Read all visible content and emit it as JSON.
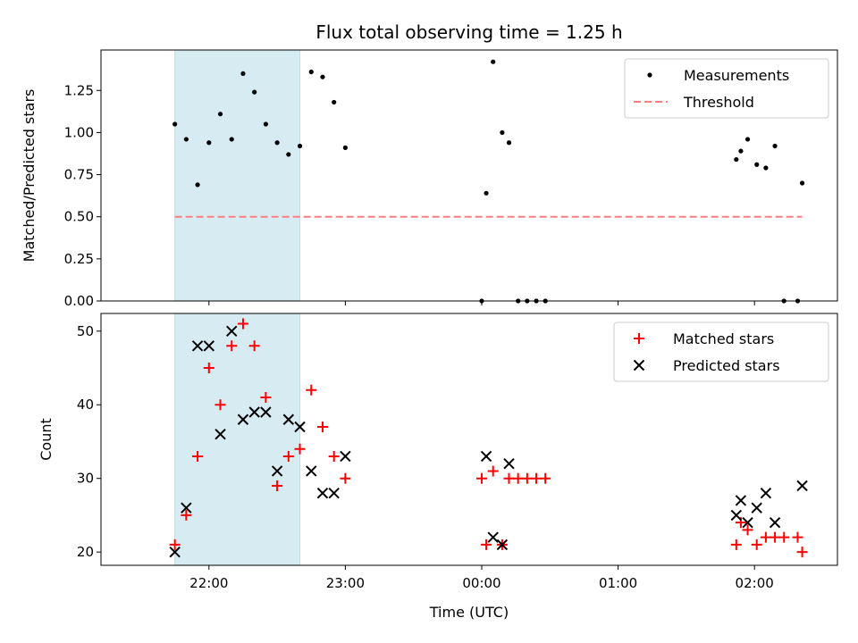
{
  "title": "Flux total observing time = 1.25 h",
  "xlabel": "Time (UTC)",
  "x_ticks": [
    "22:00",
    "23:00",
    "00:00",
    "01:00",
    "02:00"
  ],
  "shaded_region": {
    "start": "21:45",
    "end": "22:40",
    "color": "#add8e6"
  },
  "chart_data": [
    {
      "type": "scatter",
      "ylabel": "Matched/Predicted stars",
      "ylim": [
        0,
        1.49
      ],
      "y_ticks": [
        "0.00",
        "0.25",
        "0.50",
        "0.75",
        "1.00",
        "1.25"
      ],
      "legend_placement": "top-right",
      "series": [
        {
          "name": "Measurements",
          "marker": "dot",
          "color": "#000000",
          "points": [
            [
              "21:45",
              1.05
            ],
            [
              "21:50",
              0.96
            ],
            [
              "21:55",
              0.69
            ],
            [
              "22:00",
              0.94
            ],
            [
              "22:05",
              1.11
            ],
            [
              "22:10",
              0.96
            ],
            [
              "22:15",
              1.35
            ],
            [
              "22:20",
              1.24
            ],
            [
              "22:25",
              1.05
            ],
            [
              "22:30",
              0.94
            ],
            [
              "22:35",
              0.87
            ],
            [
              "22:40",
              0.92
            ],
            [
              "22:45",
              1.36
            ],
            [
              "22:50",
              1.33
            ],
            [
              "22:55",
              1.18
            ],
            [
              "23:00",
              0.91
            ],
            [
              "00:00",
              0.0
            ],
            [
              "00:02",
              0.64
            ],
            [
              "00:05",
              1.42
            ],
            [
              "00:09",
              1.0
            ],
            [
              "00:12",
              0.94
            ],
            [
              "00:16",
              0.0
            ],
            [
              "00:20",
              0.0
            ],
            [
              "00:24",
              0.0
            ],
            [
              "00:28",
              0.0
            ],
            [
              "01:52",
              0.84
            ],
            [
              "01:54",
              0.89
            ],
            [
              "01:57",
              0.96
            ],
            [
              "02:01",
              0.81
            ],
            [
              "02:05",
              0.79
            ],
            [
              "02:09",
              0.92
            ],
            [
              "02:13",
              0.0
            ],
            [
              "02:19",
              0.0
            ],
            [
              "02:21",
              0.7
            ]
          ]
        },
        {
          "name": "Threshold",
          "line": "dashed",
          "color": "#ff7f7f",
          "points": [
            [
              "21:45",
              0.5
            ],
            [
              "02:21",
              0.5
            ]
          ]
        }
      ]
    },
    {
      "type": "scatter",
      "ylabel": "Count",
      "ylim": [
        18.2,
        52.4
      ],
      "y_ticks": [
        "20",
        "30",
        "40",
        "50"
      ],
      "legend_placement": "top-right",
      "series": [
        {
          "name": "Matched stars",
          "marker": "plus",
          "color": "#ff0000",
          "points": [
            [
              "21:45",
              21
            ],
            [
              "21:50",
              25
            ],
            [
              "21:55",
              33
            ],
            [
              "22:00",
              45
            ],
            [
              "22:05",
              40
            ],
            [
              "22:10",
              48
            ],
            [
              "22:15",
              51
            ],
            [
              "22:20",
              48
            ],
            [
              "22:25",
              41
            ],
            [
              "22:30",
              29
            ],
            [
              "22:35",
              33
            ],
            [
              "22:40",
              34
            ],
            [
              "22:45",
              42
            ],
            [
              "22:50",
              37
            ],
            [
              "22:55",
              33
            ],
            [
              "23:00",
              30
            ],
            [
              "00:00",
              30
            ],
            [
              "00:02",
              21
            ],
            [
              "00:05",
              31
            ],
            [
              "00:09",
              21
            ],
            [
              "00:12",
              30
            ],
            [
              "00:16",
              30
            ],
            [
              "00:20",
              30
            ],
            [
              "00:24",
              30
            ],
            [
              "00:28",
              30
            ],
            [
              "01:52",
              21
            ],
            [
              "01:54",
              24
            ],
            [
              "01:57",
              23
            ],
            [
              "02:01",
              21
            ],
            [
              "02:05",
              22
            ],
            [
              "02:09",
              22
            ],
            [
              "02:13",
              22
            ],
            [
              "02:19",
              22
            ],
            [
              "02:21",
              20
            ]
          ]
        },
        {
          "name": "Predicted stars",
          "marker": "x",
          "color": "#000000",
          "points": [
            [
              "21:45",
              20
            ],
            [
              "21:50",
              26
            ],
            [
              "21:55",
              48
            ],
            [
              "22:00",
              48
            ],
            [
              "22:05",
              36
            ],
            [
              "22:10",
              50
            ],
            [
              "22:15",
              38
            ],
            [
              "22:20",
              39
            ],
            [
              "22:25",
              39
            ],
            [
              "22:30",
              31
            ],
            [
              "22:35",
              38
            ],
            [
              "22:40",
              37
            ],
            [
              "22:45",
              31
            ],
            [
              "22:50",
              28
            ],
            [
              "22:55",
              28
            ],
            [
              "23:00",
              33
            ],
            [
              "00:02",
              33
            ],
            [
              "00:05",
              22
            ],
            [
              "00:09",
              21
            ],
            [
              "00:12",
              32
            ],
            [
              "01:52",
              25
            ],
            [
              "01:54",
              27
            ],
            [
              "01:57",
              24
            ],
            [
              "02:01",
              26
            ],
            [
              "02:05",
              28
            ],
            [
              "02:09",
              24
            ],
            [
              "02:21",
              29
            ]
          ]
        }
      ]
    }
  ]
}
